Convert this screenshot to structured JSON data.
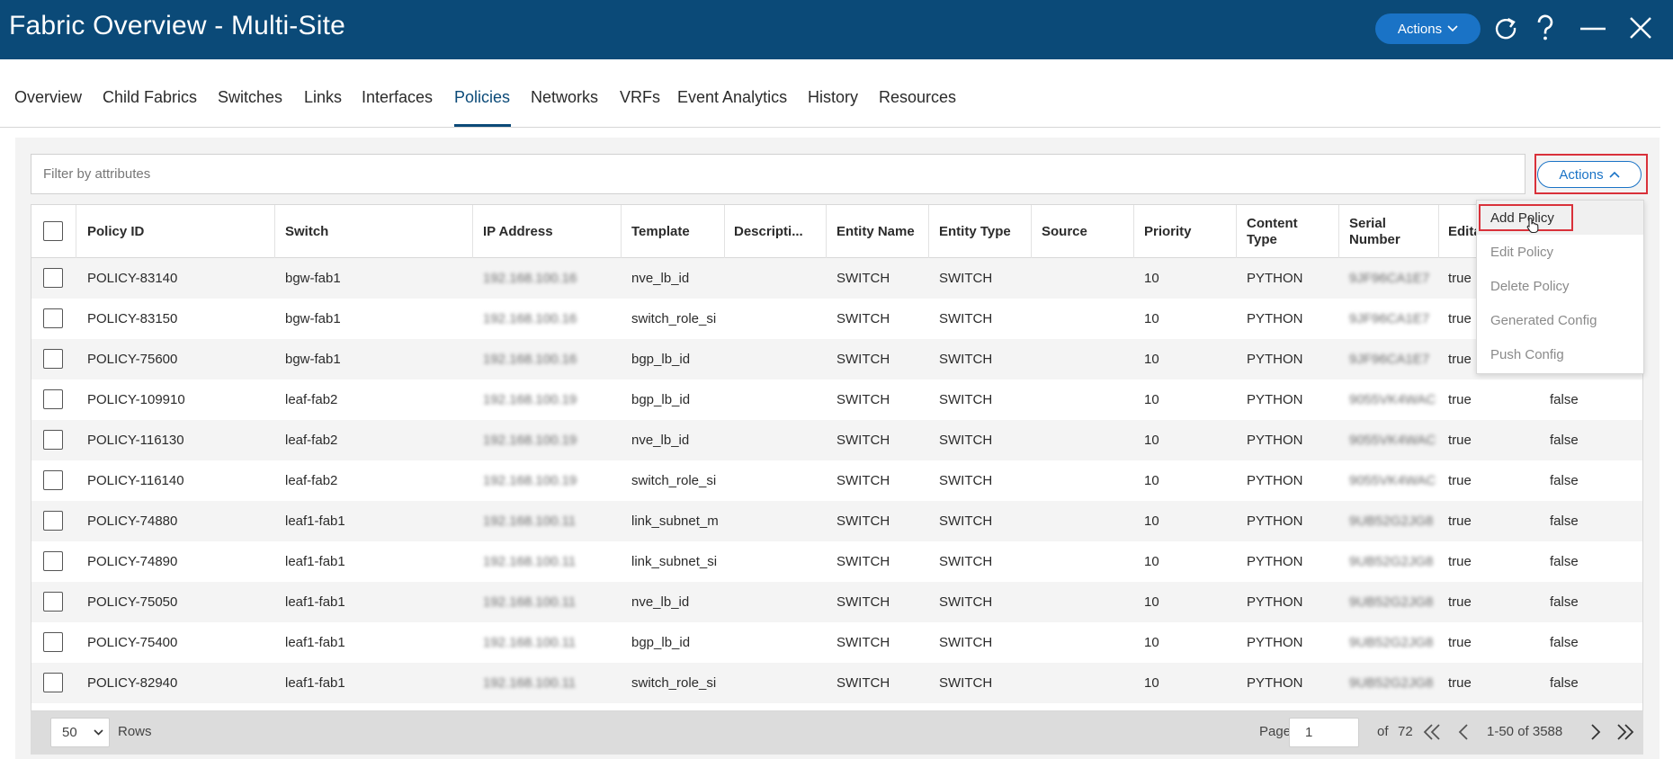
{
  "header": {
    "title": "Fabric Overview - Multi-Site",
    "actions_label": "Actions",
    "icons": [
      "refresh-icon",
      "help-icon",
      "minimize-icon",
      "close-icon"
    ]
  },
  "tabs": [
    {
      "label": "Overview",
      "active": false
    },
    {
      "label": "Child Fabrics",
      "active": false
    },
    {
      "label": "Switches",
      "active": false
    },
    {
      "label": "Links",
      "active": false
    },
    {
      "label": "Interfaces",
      "active": false
    },
    {
      "label": "Policies",
      "active": true
    },
    {
      "label": "Networks",
      "active": false
    },
    {
      "label": "VRFs",
      "active": false
    },
    {
      "label": "Event Analytics",
      "active": false
    },
    {
      "label": "History",
      "active": false
    },
    {
      "label": "Resources",
      "active": false
    }
  ],
  "filter": {
    "placeholder": "Filter by attributes"
  },
  "table_actions": {
    "label": "Actions"
  },
  "columns": [
    "Policy ID",
    "Switch",
    "IP Address",
    "Template",
    "Descripti...",
    "Entity Name",
    "Entity Type",
    "Source",
    "Priority",
    "Content Type",
    "Serial Number",
    "Edita"
  ],
  "rows": [
    {
      "policy_id": "POLICY-83140",
      "switch": "bgw-fab1",
      "ip": "192.168.100.16",
      "template": "nve_lb_id",
      "description": "",
      "entity_name": "SWITCH",
      "entity_type": "SWITCH",
      "source": "",
      "priority": "10",
      "content_type": "PYTHON",
      "serial": "9JF96CA1E7",
      "editable": "true",
      "extra": ""
    },
    {
      "policy_id": "POLICY-83150",
      "switch": "bgw-fab1",
      "ip": "192.168.100.16",
      "template": "switch_role_si",
      "description": "",
      "entity_name": "SWITCH",
      "entity_type": "SWITCH",
      "source": "",
      "priority": "10",
      "content_type": "PYTHON",
      "serial": "9JF96CA1E7",
      "editable": "true",
      "extra": ""
    },
    {
      "policy_id": "POLICY-75600",
      "switch": "bgw-fab1",
      "ip": "192.168.100.16",
      "template": "bgp_lb_id",
      "description": "",
      "entity_name": "SWITCH",
      "entity_type": "SWITCH",
      "source": "",
      "priority": "10",
      "content_type": "PYTHON",
      "serial": "9JF96CA1E7",
      "editable": "true",
      "extra": ""
    },
    {
      "policy_id": "POLICY-109910",
      "switch": "leaf-fab2",
      "ip": "192.168.100.19",
      "template": "bgp_lb_id",
      "description": "",
      "entity_name": "SWITCH",
      "entity_type": "SWITCH",
      "source": "",
      "priority": "10",
      "content_type": "PYTHON",
      "serial": "9055VK4WAC",
      "editable": "true",
      "extra": "false"
    },
    {
      "policy_id": "POLICY-116130",
      "switch": "leaf-fab2",
      "ip": "192.168.100.19",
      "template": "nve_lb_id",
      "description": "",
      "entity_name": "SWITCH",
      "entity_type": "SWITCH",
      "source": "",
      "priority": "10",
      "content_type": "PYTHON",
      "serial": "9055VK4WAC",
      "editable": "true",
      "extra": "false"
    },
    {
      "policy_id": "POLICY-116140",
      "switch": "leaf-fab2",
      "ip": "192.168.100.19",
      "template": "switch_role_si",
      "description": "",
      "entity_name": "SWITCH",
      "entity_type": "SWITCH",
      "source": "",
      "priority": "10",
      "content_type": "PYTHON",
      "serial": "9055VK4WAC",
      "editable": "true",
      "extra": "false"
    },
    {
      "policy_id": "POLICY-74880",
      "switch": "leaf1-fab1",
      "ip": "192.168.100.11",
      "template": "link_subnet_m",
      "description": "",
      "entity_name": "SWITCH",
      "entity_type": "SWITCH",
      "source": "",
      "priority": "10",
      "content_type": "PYTHON",
      "serial": "9UB52G2JG8",
      "editable": "true",
      "extra": "false"
    },
    {
      "policy_id": "POLICY-74890",
      "switch": "leaf1-fab1",
      "ip": "192.168.100.11",
      "template": "link_subnet_si",
      "description": "",
      "entity_name": "SWITCH",
      "entity_type": "SWITCH",
      "source": "",
      "priority": "10",
      "content_type": "PYTHON",
      "serial": "9UB52G2JG8",
      "editable": "true",
      "extra": "false"
    },
    {
      "policy_id": "POLICY-75050",
      "switch": "leaf1-fab1",
      "ip": "192.168.100.11",
      "template": "nve_lb_id",
      "description": "",
      "entity_name": "SWITCH",
      "entity_type": "SWITCH",
      "source": "",
      "priority": "10",
      "content_type": "PYTHON",
      "serial": "9UB52G2JG8",
      "editable": "true",
      "extra": "false"
    },
    {
      "policy_id": "POLICY-75400",
      "switch": "leaf1-fab1",
      "ip": "192.168.100.11",
      "template": "bgp_lb_id",
      "description": "",
      "entity_name": "SWITCH",
      "entity_type": "SWITCH",
      "source": "",
      "priority": "10",
      "content_type": "PYTHON",
      "serial": "9UB52G2JG8",
      "editable": "true",
      "extra": "false"
    },
    {
      "policy_id": "POLICY-82940",
      "switch": "leaf1-fab1",
      "ip": "192.168.100.11",
      "template": "switch_role_si",
      "description": "",
      "entity_name": "SWITCH",
      "entity_type": "SWITCH",
      "source": "",
      "priority": "10",
      "content_type": "PYTHON",
      "serial": "9UB52G2JG8",
      "editable": "true",
      "extra": "false"
    }
  ],
  "dropdown_menu": [
    "Add Policy",
    "Edit Policy",
    "Delete Policy",
    "Generated Config",
    "Push Config"
  ],
  "pagination": {
    "rows_per_page": "50",
    "rows_label": "Rows",
    "page_label": "Page",
    "page_value": "1",
    "of_label": "of",
    "total_pages": "72",
    "range": "1-50 of 3588"
  },
  "colors": {
    "header_bg": "#0b4a78",
    "accent": "#1a73c6",
    "highlight": "#d9313a"
  }
}
